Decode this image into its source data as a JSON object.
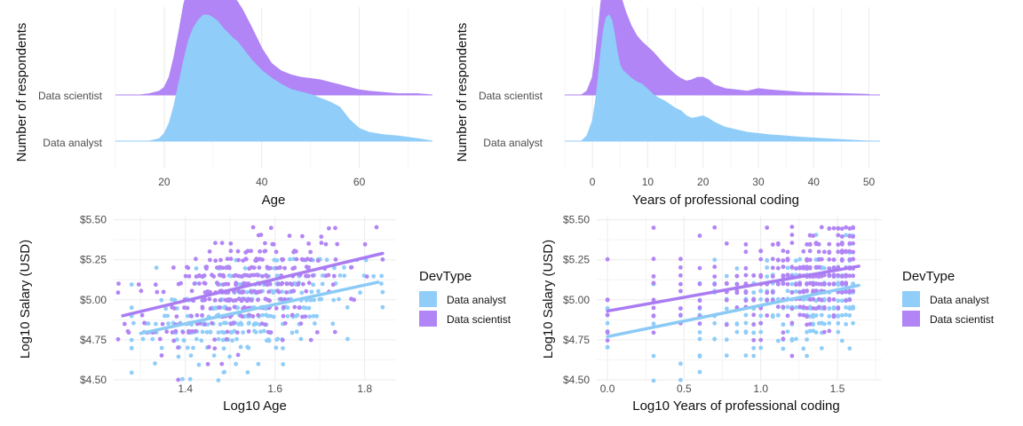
{
  "colors": {
    "analyst": "#90cdf9",
    "scientist": "#b185f5",
    "scientist_line": "#a97cf2",
    "analyst_line": "#8ccaf6"
  },
  "chart_data": [
    {
      "type": "area",
      "subtype": "ridgeline",
      "xlabel": "Age",
      "ylabel": "Number of respondents",
      "xlim": [
        10,
        75
      ],
      "x_ticks": [
        20,
        40,
        60
      ],
      "categories": [
        "Data analyst",
        "Data scientist"
      ],
      "series": [
        {
          "name": "Data analyst",
          "x": [
            17,
            19,
            20,
            21,
            22,
            23,
            24,
            25,
            26,
            27,
            28,
            29,
            30,
            31,
            32,
            33,
            34,
            35,
            36,
            38,
            40,
            42,
            44,
            46,
            48,
            50,
            52,
            54,
            56,
            58,
            60,
            62,
            65,
            68,
            72,
            75
          ],
          "density": [
            0.0,
            0.02,
            0.06,
            0.14,
            0.28,
            0.46,
            0.64,
            0.8,
            0.9,
            0.96,
            1.0,
            1.0,
            0.98,
            0.95,
            0.9,
            0.86,
            0.82,
            0.79,
            0.74,
            0.64,
            0.56,
            0.5,
            0.45,
            0.41,
            0.39,
            0.37,
            0.34,
            0.31,
            0.27,
            0.17,
            0.1,
            0.07,
            0.05,
            0.04,
            0.02,
            0.0
          ]
        },
        {
          "name": "Data scientist",
          "x": [
            15,
            17,
            19,
            20,
            21,
            22,
            23,
            24,
            25,
            26,
            27,
            28,
            29,
            30,
            31,
            32,
            33,
            34,
            35,
            36,
            38,
            40,
            42,
            44,
            46,
            48,
            50,
            52,
            54,
            56,
            58,
            60,
            62,
            65,
            68,
            72,
            75
          ],
          "density": [
            0.0,
            0.01,
            0.03,
            0.06,
            0.14,
            0.3,
            0.5,
            0.72,
            0.86,
            0.96,
            1.0,
            0.98,
            0.93,
            0.88,
            0.86,
            0.85,
            0.82,
            0.79,
            0.74,
            0.68,
            0.53,
            0.37,
            0.25,
            0.19,
            0.16,
            0.14,
            0.13,
            0.12,
            0.1,
            0.08,
            0.06,
            0.04,
            0.03,
            0.02,
            0.01,
            0.01,
            0.0
          ]
        }
      ]
    },
    {
      "type": "area",
      "subtype": "ridgeline",
      "xlabel": "Years of professional coding",
      "ylabel": "Number of respondents",
      "xlim": [
        -5,
        52
      ],
      "x_ticks": [
        0,
        10,
        20,
        30,
        40,
        50
      ],
      "categories": [
        "Data analyst",
        "Data scientist"
      ],
      "series": [
        {
          "name": "Data analyst",
          "x": [
            -2,
            -1,
            0,
            0.5,
            1,
            1.5,
            2,
            2.5,
            3,
            3.5,
            4,
            4.5,
            5,
            5.5,
            6,
            7,
            8,
            9,
            10,
            11,
            12,
            13,
            14,
            15,
            16,
            17,
            18,
            19,
            20,
            21,
            22,
            24,
            26,
            28,
            30,
            32,
            35,
            38,
            42,
            46,
            50
          ],
          "density": [
            0.0,
            0.04,
            0.16,
            0.3,
            0.48,
            0.7,
            0.88,
            0.98,
            1.0,
            0.96,
            0.84,
            0.7,
            0.6,
            0.56,
            0.54,
            0.5,
            0.47,
            0.45,
            0.41,
            0.37,
            0.34,
            0.32,
            0.29,
            0.26,
            0.24,
            0.2,
            0.18,
            0.19,
            0.2,
            0.18,
            0.15,
            0.11,
            0.09,
            0.07,
            0.06,
            0.05,
            0.04,
            0.03,
            0.02,
            0.01,
            0.0
          ]
        },
        {
          "name": "Data scientist",
          "x": [
            -2,
            -1,
            0,
            0.5,
            1,
            1.5,
            2,
            2.5,
            3,
            3.5,
            4,
            4.5,
            5,
            6,
            7,
            8,
            9,
            10,
            11,
            12,
            13,
            14,
            15,
            16,
            17,
            18,
            19,
            20,
            21,
            22,
            24,
            26,
            28,
            30,
            32,
            35,
            38,
            42,
            46,
            50
          ],
          "density": [
            0.0,
            0.03,
            0.14,
            0.3,
            0.5,
            0.72,
            0.9,
            0.98,
            1.0,
            0.98,
            0.94,
            0.88,
            0.8,
            0.66,
            0.55,
            0.47,
            0.42,
            0.38,
            0.34,
            0.29,
            0.24,
            0.2,
            0.16,
            0.13,
            0.11,
            0.12,
            0.14,
            0.14,
            0.12,
            0.08,
            0.05,
            0.04,
            0.03,
            0.05,
            0.04,
            0.03,
            0.02,
            0.015,
            0.01,
            0.005,
            0.0
          ]
        }
      ]
    },
    {
      "type": "scatter",
      "xlabel": "Log10 Age",
      "ylabel": "Log10 Salary (USD)",
      "xlim": [
        1.24,
        1.87
      ],
      "ylim": [
        4.5,
        5.52
      ],
      "x_ticks": [
        1.4,
        1.6,
        1.8
      ],
      "y_ticks": [
        4.5,
        4.75,
        5.0,
        5.25,
        5.5
      ],
      "y_tick_labels": [
        "$4.50",
        "$4.75",
        "$5.00",
        "$5.25",
        "$5.50"
      ],
      "legend_title": "DevType",
      "legend_placement": "right",
      "series": [
        {
          "name": "Data analyst",
          "trend": {
            "x": [
              1.3,
              1.83
            ],
            "y": [
              4.79,
              5.11
            ]
          },
          "x_range": [
            1.28,
            1.84
          ],
          "y_range": [
            4.5,
            5.27
          ],
          "n_points": 320
        },
        {
          "name": "Data scientist",
          "trend": {
            "x": [
              1.26,
              1.84
            ],
            "y": [
              4.9,
              5.29
            ]
          },
          "x_range": [
            1.25,
            1.84
          ],
          "y_range": [
            4.52,
            5.47
          ],
          "n_points": 340
        }
      ]
    },
    {
      "type": "scatter",
      "xlabel": "Log10 Years of professional coding",
      "ylabel": "Log10 Salary (USD)",
      "xlim": [
        -0.07,
        1.79
      ],
      "ylim": [
        4.5,
        5.52
      ],
      "x_ticks": [
        0.0,
        0.5,
        1.0,
        1.5
      ],
      "y_ticks": [
        4.5,
        4.75,
        5.0,
        5.25,
        5.5
      ],
      "y_tick_labels": [
        "$4.50",
        "$4.75",
        "$5.00",
        "$5.25",
        "$5.50"
      ],
      "legend_title": "DevType",
      "legend_placement": "right",
      "series": [
        {
          "name": "Data analyst",
          "trend": {
            "x": [
              0.0,
              1.64
            ],
            "y": [
              4.77,
              5.09
            ]
          },
          "x_levels": [
            0.0,
            0.301,
            0.477,
            0.602,
            0.699,
            0.778,
            0.845,
            0.903,
            0.954,
            1.0,
            1.041,
            1.079,
            1.114,
            1.146,
            1.176,
            1.204,
            1.23,
            1.255,
            1.279,
            1.301,
            1.322,
            1.342,
            1.362,
            1.38,
            1.398,
            1.415,
            1.447,
            1.477,
            1.505,
            1.531,
            1.556,
            1.58,
            1.602
          ],
          "y_range": [
            4.5,
            5.38
          ],
          "n_points": 320
        },
        {
          "name": "Data scientist",
          "trend": {
            "x": [
              0.0,
              1.64
            ],
            "y": [
              4.93,
              5.21
            ]
          },
          "x_levels": [
            0.0,
            0.301,
            0.477,
            0.602,
            0.699,
            0.778,
            0.845,
            0.903,
            0.954,
            1.0,
            1.041,
            1.079,
            1.114,
            1.146,
            1.176,
            1.204,
            1.23,
            1.255,
            1.279,
            1.301,
            1.322,
            1.342,
            1.362,
            1.38,
            1.398,
            1.415,
            1.447,
            1.477,
            1.505,
            1.531,
            1.556,
            1.58,
            1.602
          ],
          "y_range": [
            4.52,
            5.47
          ],
          "n_points": 340
        }
      ]
    }
  ]
}
